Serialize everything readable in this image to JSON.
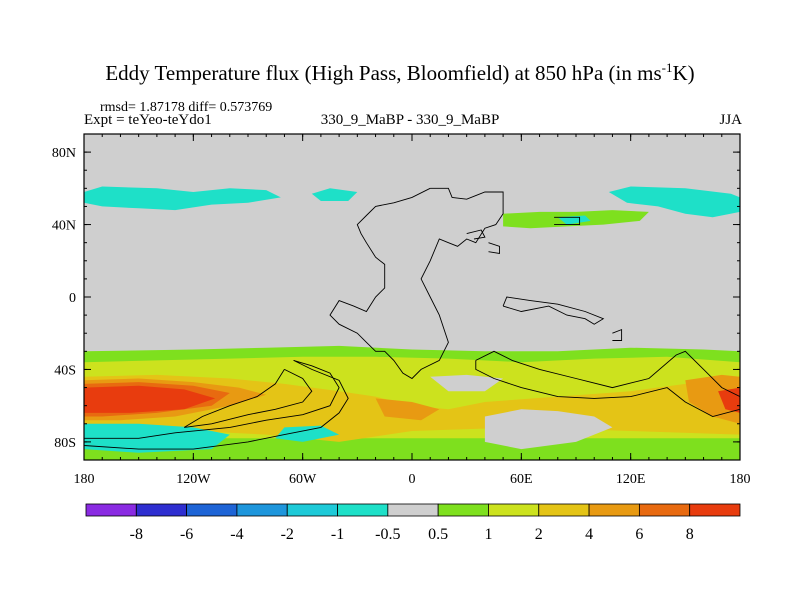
{
  "header": {
    "title_main": "Eddy Temperature flux (High Pass, Bloomfield) at 850 hPa (in ms",
    "title_sup": "-1",
    "title_end": "K)",
    "stats": "rmsd= 1.87178 diff= 0.573769",
    "expt": "Expt = teYeo-teYdo1",
    "center": "330_9_MaBP - 330_9_MaBP",
    "season": "JJA"
  },
  "chart_data": {
    "type": "heatmap",
    "projection": "cylindrical equidistant",
    "x_range": [
      -180,
      180
    ],
    "y_range": [
      -90,
      90
    ],
    "x_ticks": [
      {
        "value": -180,
        "label": "180"
      },
      {
        "value": -120,
        "label": "120W"
      },
      {
        "value": -60,
        "label": "60W"
      },
      {
        "value": 0,
        "label": "0"
      },
      {
        "value": 60,
        "label": "60E"
      },
      {
        "value": 120,
        "label": "120E"
      },
      {
        "value": 180,
        "label": "180"
      }
    ],
    "y_ticks": [
      {
        "value": 80,
        "label": "80N"
      },
      {
        "value": 40,
        "label": "40N"
      },
      {
        "value": 0,
        "label": "0"
      },
      {
        "value": -40,
        "label": "40S"
      },
      {
        "value": -80,
        "label": "80S"
      }
    ],
    "colorbar": {
      "labels": [
        "-8",
        "-6",
        "-4",
        "-2",
        "-1",
        "-0.5",
        "0.5",
        "1",
        "2",
        "4",
        "6",
        "8"
      ],
      "colors": [
        "#8a2be2",
        "#2e2ed0",
        "#1e64d6",
        "#1e96dc",
        "#1ecad8",
        "#1ee0c8",
        "#cfcfcf",
        "#7ee01e",
        "#cce21e",
        "#e4c416",
        "#e89a12",
        "#e86a10",
        "#e83c0e"
      ]
    },
    "regions": [
      {
        "level": "-0.5",
        "color": "#1ee0c8",
        "coords": [
          [
            -180,
            58
          ],
          [
            -170,
            61
          ],
          [
            -140,
            60
          ],
          [
            -120,
            58
          ],
          [
            -100,
            60
          ],
          [
            -80,
            59
          ],
          [
            -72,
            55
          ],
          [
            -90,
            52
          ],
          [
            -110,
            51
          ],
          [
            -130,
            48
          ],
          [
            -150,
            49
          ],
          [
            -170,
            50
          ],
          [
            -180,
            52
          ]
        ]
      },
      {
        "level": "-0.5",
        "color": "#1ee0c8",
        "coords": [
          [
            -55,
            57
          ],
          [
            -45,
            60
          ],
          [
            -30,
            58
          ],
          [
            -35,
            53
          ],
          [
            -50,
            53
          ]
        ]
      },
      {
        "level": "-0.5",
        "color": "#1ee0c8",
        "coords": [
          [
            108,
            58
          ],
          [
            120,
            61
          ],
          [
            150,
            60
          ],
          [
            175,
            57
          ],
          [
            180,
            55
          ],
          [
            180,
            47
          ],
          [
            165,
            44
          ],
          [
            150,
            46
          ],
          [
            135,
            50
          ],
          [
            118,
            52
          ]
        ]
      },
      {
        "level": "0.5",
        "color": "#7ee01e",
        "coords": [
          [
            50,
            46
          ],
          [
            70,
            47
          ],
          [
            90,
            47
          ],
          [
            110,
            48
          ],
          [
            130,
            47
          ],
          [
            125,
            42
          ],
          [
            105,
            40
          ],
          [
            85,
            39
          ],
          [
            65,
            38
          ],
          [
            50,
            39
          ]
        ]
      },
      {
        "level": "-0.5",
        "color": "#1ee0c8",
        "coords": [
          [
            80,
            44
          ],
          [
            95,
            45
          ],
          [
            98,
            42
          ],
          [
            85,
            40
          ]
        ]
      },
      {
        "level": "0.5",
        "color": "#7ee01e",
        "coords": [
          [
            -180,
            -30
          ],
          [
            -120,
            -29
          ],
          [
            -80,
            -28
          ],
          [
            -40,
            -27
          ],
          [
            0,
            -29
          ],
          [
            40,
            -30
          ],
          [
            80,
            -30
          ],
          [
            120,
            -28
          ],
          [
            160,
            -29
          ],
          [
            180,
            -30
          ],
          [
            180,
            -90
          ],
          [
            -180,
            -90
          ]
        ]
      },
      {
        "level": "1",
        "color": "#cce21e",
        "coords": [
          [
            -180,
            -36
          ],
          [
            -140,
            -35
          ],
          [
            -100,
            -34
          ],
          [
            -60,
            -33
          ],
          [
            -20,
            -33
          ],
          [
            20,
            -34
          ],
          [
            60,
            -36
          ],
          [
            100,
            -34
          ],
          [
            140,
            -33
          ],
          [
            180,
            -36
          ],
          [
            180,
            -78
          ],
          [
            -180,
            -78
          ]
        ]
      },
      {
        "level": "2",
        "color": "#e4c416",
        "coords": [
          [
            -180,
            -44
          ],
          [
            -140,
            -43
          ],
          [
            -100,
            -45
          ],
          [
            -70,
            -48
          ],
          [
            -40,
            -52
          ],
          [
            -20,
            -55
          ],
          [
            0,
            -60
          ],
          [
            20,
            -62
          ],
          [
            40,
            -58
          ],
          [
            80,
            -55
          ],
          [
            120,
            -52
          ],
          [
            150,
            -48
          ],
          [
            180,
            -44
          ],
          [
            180,
            -76
          ],
          [
            120,
            -74
          ],
          [
            60,
            -72
          ],
          [
            0,
            -74
          ],
          [
            -40,
            -80
          ],
          [
            -80,
            -76
          ],
          [
            -120,
            -74
          ],
          [
            -180,
            -72
          ]
        ]
      },
      {
        "level": "4",
        "color": "#e89a12",
        "coords": [
          [
            -180,
            -46
          ],
          [
            -150,
            -45
          ],
          [
            -120,
            -47
          ],
          [
            -95,
            -50
          ],
          [
            -80,
            -54
          ],
          [
            -100,
            -60
          ],
          [
            -130,
            -66
          ],
          [
            -160,
            -68
          ],
          [
            -180,
            -68
          ]
        ]
      },
      {
        "level": "6",
        "color": "#e86a10",
        "coords": [
          [
            -180,
            -48
          ],
          [
            -150,
            -47
          ],
          [
            -120,
            -49
          ],
          [
            -100,
            -53
          ],
          [
            -110,
            -60
          ],
          [
            -140,
            -64
          ],
          [
            -170,
            -66
          ],
          [
            -180,
            -66
          ]
        ]
      },
      {
        "level": "8",
        "color": "#e83c0e",
        "coords": [
          [
            -180,
            -50
          ],
          [
            -150,
            -49
          ],
          [
            -125,
            -51
          ],
          [
            -108,
            -56
          ],
          [
            -125,
            -62
          ],
          [
            -155,
            -64
          ],
          [
            -180,
            -64
          ]
        ]
      },
      {
        "level": "4",
        "color": "#e89a12",
        "coords": [
          [
            150,
            -46
          ],
          [
            170,
            -43
          ],
          [
            180,
            -44
          ],
          [
            180,
            -70
          ],
          [
            165,
            -66
          ],
          [
            152,
            -58
          ]
        ]
      },
      {
        "level": "8",
        "color": "#e83c0e",
        "coords": [
          [
            168,
            -52
          ],
          [
            180,
            -50
          ],
          [
            180,
            -64
          ],
          [
            172,
            -62
          ]
        ]
      },
      {
        "level": "4",
        "color": "#e89a12",
        "coords": [
          [
            -20,
            -56
          ],
          [
            0,
            -58
          ],
          [
            15,
            -62
          ],
          [
            5,
            -68
          ],
          [
            -15,
            -66
          ]
        ]
      },
      {
        "level": "0.5",
        "color": "#cfcfcf",
        "coords": [
          [
            10,
            -44
          ],
          [
            30,
            -43
          ],
          [
            50,
            -45
          ],
          [
            40,
            -52
          ],
          [
            20,
            -52
          ]
        ]
      },
      {
        "level": "0.5",
        "color": "#cfcfcf",
        "coords": [
          [
            40,
            -66
          ],
          [
            60,
            -62
          ],
          [
            80,
            -63
          ],
          [
            100,
            -66
          ],
          [
            110,
            -72
          ],
          [
            90,
            -80
          ],
          [
            60,
            -84
          ],
          [
            40,
            -80
          ]
        ]
      },
      {
        "level": "-0.5",
        "color": "#1ee0c8",
        "coords": [
          [
            -180,
            -70
          ],
          [
            -150,
            -70
          ],
          [
            -120,
            -72
          ],
          [
            -100,
            -76
          ],
          [
            -110,
            -84
          ],
          [
            -150,
            -86
          ],
          [
            -180,
            -84
          ]
        ]
      },
      {
        "level": "-0.5",
        "color": "#1ee0c8",
        "coords": [
          [
            -70,
            -72
          ],
          [
            -50,
            -71
          ],
          [
            -40,
            -76
          ],
          [
            -60,
            -80
          ],
          [
            -75,
            -78
          ]
        ]
      }
    ],
    "outlines": [
      [
        [
          10,
          60
        ],
        [
          20,
          60
        ],
        [
          22,
          55
        ],
        [
          30,
          54
        ],
        [
          35,
          56
        ],
        [
          40,
          58
        ],
        [
          50,
          58
        ],
        [
          50,
          46
        ],
        [
          46,
          40
        ],
        [
          40,
          38
        ],
        [
          35,
          30
        ],
        [
          30,
          32
        ],
        [
          25,
          28
        ],
        [
          20,
          30
        ],
        [
          15,
          32
        ],
        [
          10,
          20
        ],
        [
          5,
          10
        ],
        [
          10,
          0
        ],
        [
          15,
          -10
        ],
        [
          20,
          -25
        ],
        [
          15,
          -35
        ],
        [
          5,
          -40
        ],
        [
          0,
          -45
        ],
        [
          -5,
          -42
        ],
        [
          -10,
          -35
        ],
        [
          -15,
          -30
        ],
        [
          -20,
          -30
        ],
        [
          -25,
          -25
        ],
        [
          -30,
          -20
        ],
        [
          -40,
          -15
        ],
        [
          -45,
          -10
        ],
        [
          -40,
          -2
        ],
        [
          -32,
          -5
        ],
        [
          -25,
          -8
        ],
        [
          -20,
          0
        ],
        [
          -15,
          5
        ],
        [
          -15,
          18
        ],
        [
          -20,
          22
        ],
        [
          -25,
          30
        ],
        [
          -28,
          35
        ],
        [
          -30,
          40
        ],
        [
          -25,
          45
        ],
        [
          -20,
          50
        ],
        [
          -10,
          52
        ],
        [
          0,
          55
        ],
        [
          10,
          60
        ]
      ],
      [
        [
          35,
          -35
        ],
        [
          45,
          -30
        ],
        [
          55,
          -35
        ],
        [
          70,
          -40
        ],
        [
          90,
          -45
        ],
        [
          110,
          -50
        ],
        [
          130,
          -45
        ],
        [
          145,
          -32
        ],
        [
          150,
          -30
        ],
        [
          160,
          -40
        ],
        [
          170,
          -50
        ],
        [
          180,
          -55
        ],
        [
          180,
          -62
        ],
        [
          165,
          -66
        ],
        [
          150,
          -58
        ],
        [
          140,
          -50
        ],
        [
          120,
          -55
        ],
        [
          100,
          -56
        ],
        [
          80,
          -55
        ],
        [
          60,
          -50
        ],
        [
          45,
          -45
        ],
        [
          35,
          -40
        ],
        [
          35,
          -35
        ]
      ],
      [
        [
          -65,
          -35
        ],
        [
          -55,
          -38
        ],
        [
          -45,
          -42
        ],
        [
          -40,
          -50
        ],
        [
          -45,
          -60
        ],
        [
          -60,
          -65
        ],
        [
          -80,
          -68
        ],
        [
          -100,
          -72
        ],
        [
          -130,
          -75
        ],
        [
          -150,
          -78
        ],
        [
          -170,
          -78
        ],
        [
          -180,
          -78
        ],
        [
          -180,
          -82
        ],
        [
          -150,
          -84
        ],
        [
          -120,
          -84
        ],
        [
          -90,
          -80
        ],
        [
          -70,
          -76
        ],
        [
          -50,
          -72
        ],
        [
          -40,
          -64
        ],
        [
          -35,
          -56
        ],
        [
          -40,
          -46
        ],
        [
          -55,
          -40
        ],
        [
          -65,
          -35
        ]
      ],
      [
        [
          -70,
          -40
        ],
        [
          -60,
          -45
        ],
        [
          -55,
          -52
        ],
        [
          -60,
          -58
        ],
        [
          -75,
          -62
        ],
        [
          -90,
          -65
        ],
        [
          -110,
          -70
        ],
        [
          -125,
          -72
        ],
        [
          -115,
          -66
        ],
        [
          -100,
          -60
        ],
        [
          -85,
          -55
        ],
        [
          -75,
          -48
        ],
        [
          -70,
          -40
        ]
      ],
      [
        [
          50,
          -5
        ],
        [
          60,
          -8
        ],
        [
          75,
          -5
        ],
        [
          85,
          -10
        ],
        [
          95,
          -12
        ],
        [
          100,
          -15
        ],
        [
          105,
          -12
        ],
        [
          95,
          -8
        ],
        [
          80,
          -4
        ],
        [
          65,
          -2
        ],
        [
          52,
          0
        ],
        [
          50,
          -5
        ]
      ],
      [
        [
          30,
          35
        ],
        [
          38,
          37
        ],
        [
          40,
          33
        ],
        [
          34,
          32
        ]
      ],
      [
        [
          42,
          30
        ],
        [
          48,
          28
        ],
        [
          48,
          24
        ],
        [
          42,
          25
        ]
      ],
      [
        [
          78,
          44
        ],
        [
          92,
          44
        ],
        [
          92,
          40
        ],
        [
          78,
          40
        ]
      ],
      [
        [
          110,
          -20
        ],
        [
          115,
          -18
        ],
        [
          115,
          -24
        ],
        [
          110,
          -24
        ]
      ]
    ]
  }
}
